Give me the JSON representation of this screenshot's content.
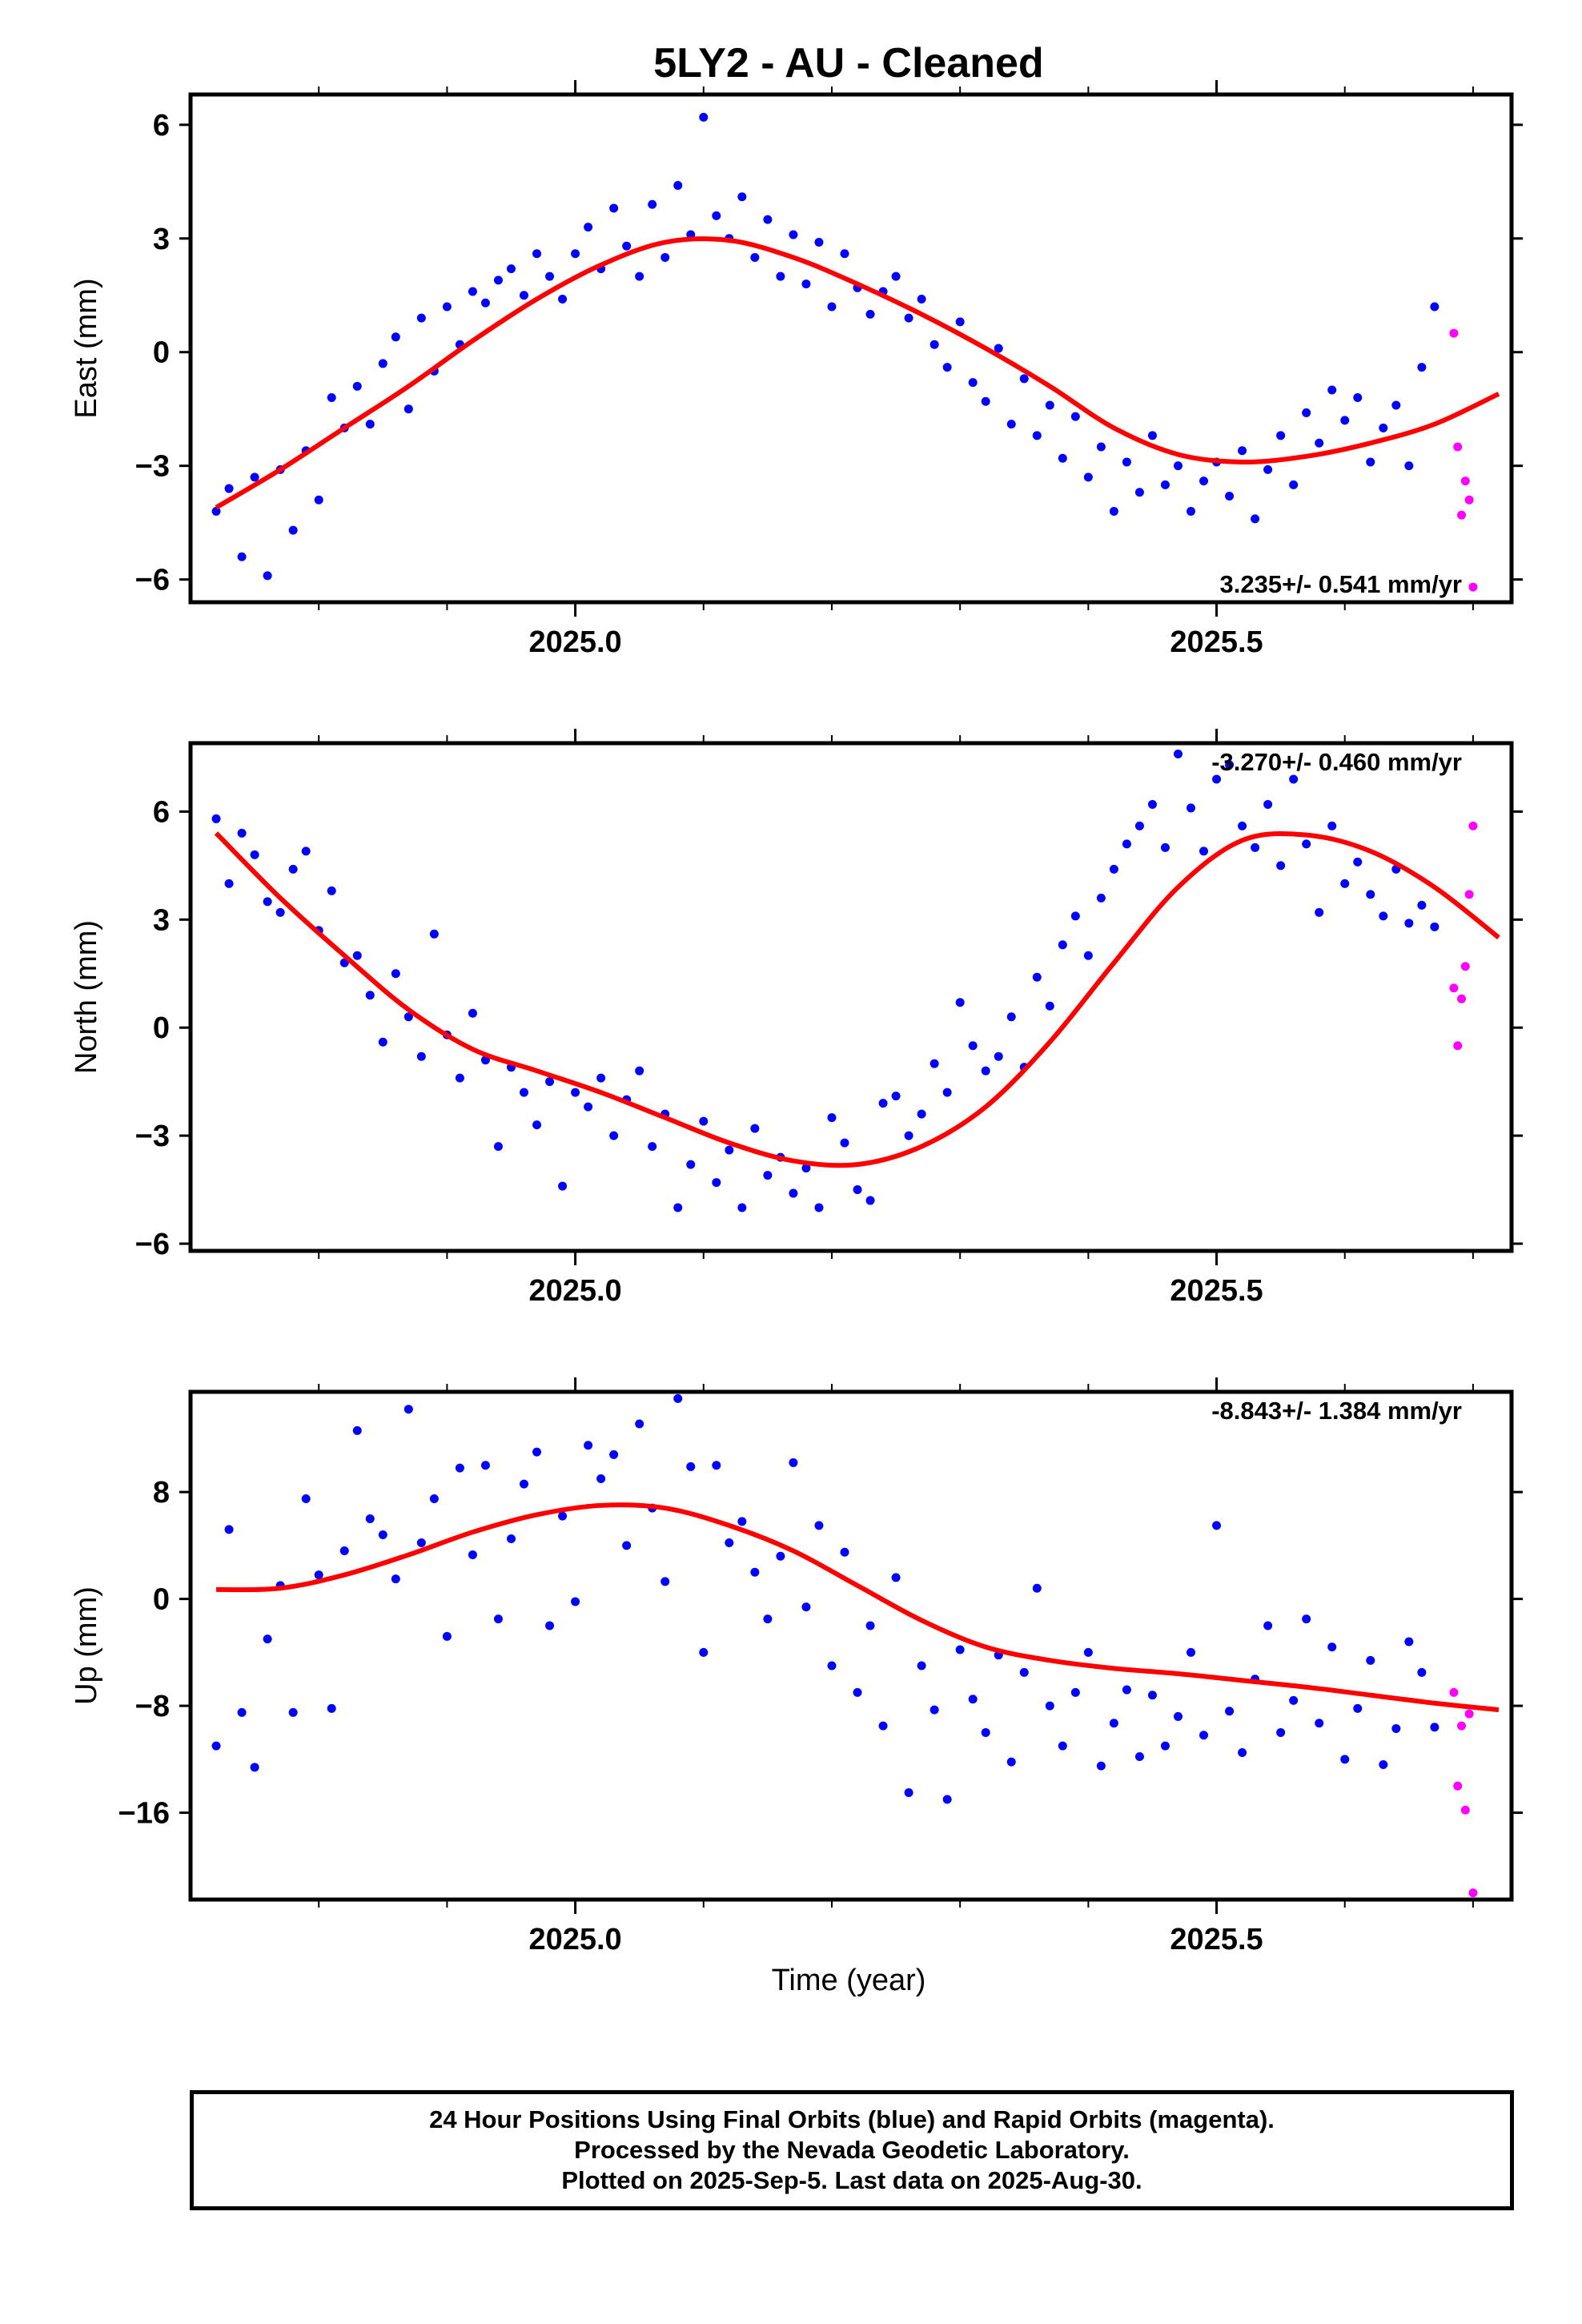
{
  "title": "5LY2  - AU - Cleaned",
  "xlabel": "Time (year)",
  "caption": {
    "line1": "24 Hour Positions Using Final Orbits (blue) and Rapid Orbits (magenta).",
    "line2": "Processed by the Nevada Geodetic Laboratory.",
    "line3": "Plotted on 2025-Sep-5. Last data on 2025-Aug-30."
  },
  "colors": {
    "final": "#0000ff",
    "rapid": "#ff00ff",
    "fit": "#ff0000",
    "frame": "#000000"
  },
  "chart_data": [
    {
      "type": "scatter",
      "name": "east",
      "ylabel": "East (mm)",
      "rate_text": "3.235+/- 0.541 mm/yr",
      "xlim": [
        2024.7,
        2025.73
      ],
      "ylim": [
        -6.6,
        6.8
      ],
      "yticks": [
        6,
        3,
        0,
        -3,
        -6
      ],
      "ytick_labels": [
        "6",
        "3",
        "0",
        "−3",
        "−6"
      ],
      "xticks_major": [
        2025.0,
        2025.5
      ],
      "xtick_labels": [
        "2025.0",
        "2025.5"
      ],
      "final_series": {
        "name": "Final Orbits",
        "x": [
          2024.72,
          2024.73,
          2024.74,
          2024.75,
          2024.76,
          2024.77,
          2024.78,
          2024.79,
          2024.8,
          2024.81,
          2024.82,
          2024.83,
          2024.84,
          2024.85,
          2024.86,
          2024.87,
          2024.88,
          2024.89,
          2024.9,
          2024.91,
          2024.92,
          2024.93,
          2024.94,
          2024.95,
          2024.96,
          2024.97,
          2024.98,
          2024.99,
          2025.0,
          2025.01,
          2025.02,
          2025.03,
          2025.04,
          2025.05,
          2025.06,
          2025.07,
          2025.08,
          2025.09,
          2025.1,
          2025.11,
          2025.12,
          2025.13,
          2025.14,
          2025.15,
          2025.16,
          2025.17,
          2025.18,
          2025.19,
          2025.2,
          2025.21,
          2025.22,
          2025.23,
          2025.24,
          2025.25,
          2025.26,
          2025.27,
          2025.28,
          2025.29,
          2025.3,
          2025.31,
          2025.32,
          2025.33,
          2025.34,
          2025.35,
          2025.36,
          2025.37,
          2025.38,
          2025.39,
          2025.4,
          2025.41,
          2025.42,
          2025.43,
          2025.44,
          2025.45,
          2025.46,
          2025.47,
          2025.48,
          2025.49,
          2025.5,
          2025.51,
          2025.52,
          2025.53,
          2025.54,
          2025.55,
          2025.56,
          2025.57,
          2025.58,
          2025.59,
          2025.6,
          2025.61,
          2025.62,
          2025.63,
          2025.64,
          2025.65,
          2025.66,
          2025.67
        ],
        "y": [
          -4.2,
          -3.6,
          -5.4,
          -3.3,
          -5.9,
          -3.1,
          -4.7,
          -2.6,
          -3.9,
          -1.2,
          -2.0,
          -0.9,
          -1.9,
          -0.3,
          0.4,
          -1.5,
          0.9,
          -0.5,
          1.2,
          0.2,
          1.6,
          1.3,
          1.9,
          2.2,
          1.5,
          2.6,
          2.0,
          1.4,
          2.6,
          3.3,
          2.2,
          3.8,
          2.8,
          2.0,
          3.9,
          2.5,
          4.4,
          3.1,
          6.2,
          3.6,
          3.0,
          4.1,
          2.5,
          3.5,
          2.0,
          3.1,
          1.8,
          2.9,
          1.2,
          2.6,
          1.7,
          1.0,
          1.6,
          2.0,
          0.9,
          1.4,
          0.2,
          -0.4,
          0.8,
          -0.8,
          -1.3,
          0.1,
          -1.9,
          -0.7,
          -2.2,
          -1.4,
          -2.8,
          -1.7,
          -3.3,
          -2.5,
          -4.2,
          -2.9,
          -3.7,
          -2.2,
          -3.5,
          -3.0,
          -4.2,
          -3.4,
          -2.9,
          -3.8,
          -2.6,
          -4.4,
          -3.1,
          -2.2,
          -3.5,
          -1.6,
          -2.4,
          -1.0,
          -1.8,
          -1.2,
          -2.9,
          -2.0,
          -1.4,
          -3.0,
          -0.4,
          1.2
        ]
      },
      "rapid_series": {
        "name": "Rapid Orbits",
        "x": [
          2025.685,
          2025.688,
          2025.691,
          2025.694,
          2025.697,
          2025.7
        ],
        "y": [
          0.5,
          -2.5,
          -4.3,
          -3.4,
          -3.9,
          -6.2
        ]
      },
      "fit": {
        "x": [
          2024.72,
          2024.77,
          2024.82,
          2024.87,
          2024.92,
          2024.97,
          2025.02,
          2025.07,
          2025.12,
          2025.17,
          2025.22,
          2025.27,
          2025.32,
          2025.37,
          2025.42,
          2025.47,
          2025.52,
          2025.57,
          2025.62,
          2025.67,
          2025.72
        ],
        "y": [
          -4.1,
          -3.1,
          -2.0,
          -0.9,
          0.3,
          1.4,
          2.3,
          2.9,
          2.95,
          2.5,
          1.8,
          1.0,
          0.1,
          -0.9,
          -2.0,
          -2.7,
          -2.9,
          -2.75,
          -2.4,
          -1.9,
          -1.1
        ]
      }
    },
    {
      "type": "scatter",
      "name": "north",
      "ylabel": "North (mm)",
      "rate_text": "-3.270+/- 0.460 mm/yr",
      "xlim": [
        2024.7,
        2025.73
      ],
      "ylim": [
        -6.2,
        7.9
      ],
      "yticks": [
        6,
        3,
        0,
        -3,
        -6
      ],
      "ytick_labels": [
        "6",
        "3",
        "0",
        "−3",
        "−6"
      ],
      "xticks_major": [
        2025.0,
        2025.5
      ],
      "xtick_labels": [
        "2025.0",
        "2025.5"
      ],
      "final_series": {
        "name": "Final Orbits",
        "x": [
          2024.72,
          2024.73,
          2024.74,
          2024.75,
          2024.76,
          2024.77,
          2024.78,
          2024.79,
          2024.8,
          2024.81,
          2024.82,
          2024.83,
          2024.84,
          2024.85,
          2024.86,
          2024.87,
          2024.88,
          2024.89,
          2024.9,
          2024.91,
          2024.92,
          2024.93,
          2024.94,
          2024.95,
          2024.96,
          2024.97,
          2024.98,
          2024.99,
          2025.0,
          2025.01,
          2025.02,
          2025.03,
          2025.04,
          2025.05,
          2025.06,
          2025.07,
          2025.08,
          2025.09,
          2025.1,
          2025.11,
          2025.12,
          2025.13,
          2025.14,
          2025.15,
          2025.16,
          2025.17,
          2025.18,
          2025.19,
          2025.2,
          2025.21,
          2025.22,
          2025.23,
          2025.24,
          2025.25,
          2025.26,
          2025.27,
          2025.28,
          2025.29,
          2025.3,
          2025.31,
          2025.32,
          2025.33,
          2025.34,
          2025.35,
          2025.36,
          2025.37,
          2025.38,
          2025.39,
          2025.4,
          2025.41,
          2025.42,
          2025.43,
          2025.44,
          2025.45,
          2025.46,
          2025.47,
          2025.48,
          2025.49,
          2025.5,
          2025.51,
          2025.52,
          2025.53,
          2025.54,
          2025.55,
          2025.56,
          2025.57,
          2025.58,
          2025.59,
          2025.6,
          2025.61,
          2025.62,
          2025.63,
          2025.64,
          2025.65,
          2025.66,
          2025.67
        ],
        "y": [
          5.8,
          4.0,
          5.4,
          4.8,
          3.5,
          3.2,
          4.4,
          4.9,
          2.7,
          3.8,
          1.8,
          2.0,
          0.9,
          -0.4,
          1.5,
          0.3,
          -0.8,
          2.6,
          -0.2,
          -1.4,
          0.4,
          -0.9,
          -3.3,
          -1.1,
          -1.8,
          -2.7,
          -1.5,
          -4.4,
          -1.8,
          -2.2,
          -1.4,
          -3.0,
          -2.0,
          -1.2,
          -3.3,
          -2.4,
          -5.0,
          -3.8,
          -2.6,
          -4.3,
          -3.4,
          -5.0,
          -2.8,
          -4.1,
          -3.6,
          -4.6,
          -3.9,
          -5.0,
          -2.5,
          -3.2,
          -4.5,
          -4.8,
          -2.1,
          -1.9,
          -3.0,
          -2.4,
          -1.0,
          -1.8,
          0.7,
          -0.5,
          -1.2,
          -0.8,
          0.3,
          -1.1,
          1.4,
          0.6,
          2.3,
          3.1,
          2.0,
          3.6,
          4.4,
          5.1,
          5.6,
          6.2,
          5.0,
          7.6,
          6.1,
          4.9,
          6.9,
          7.3,
          5.6,
          5.0,
          6.2,
          4.5,
          6.9,
          5.1,
          3.2,
          5.6,
          4.0,
          4.6,
          3.7,
          3.1,
          4.4,
          2.9,
          3.4,
          2.8
        ]
      },
      "rapid_series": {
        "name": "Rapid Orbits",
        "x": [
          2025.685,
          2025.688,
          2025.691,
          2025.694,
          2025.697,
          2025.7
        ],
        "y": [
          1.1,
          -0.5,
          0.8,
          1.7,
          3.7,
          5.6
        ]
      },
      "fit": {
        "x": [
          2024.72,
          2024.77,
          2024.82,
          2024.87,
          2024.92,
          2024.97,
          2025.02,
          2025.07,
          2025.12,
          2025.17,
          2025.22,
          2025.27,
          2025.32,
          2025.37,
          2025.42,
          2025.47,
          2025.52,
          2025.57,
          2025.62,
          2025.67,
          2025.72
        ],
        "y": [
          5.4,
          3.6,
          2.0,
          0.5,
          -0.6,
          -1.2,
          -1.8,
          -2.5,
          -3.2,
          -3.7,
          -3.8,
          -3.3,
          -2.2,
          -0.4,
          1.8,
          3.9,
          5.2,
          5.35,
          4.9,
          3.9,
          2.5
        ]
      }
    },
    {
      "type": "scatter",
      "name": "up",
      "ylabel": "Up (mm)",
      "rate_text": "-8.843+/- 1.384 mm/yr",
      "xlim": [
        2024.7,
        2025.73
      ],
      "ylim": [
        -22.5,
        15.5
      ],
      "yticks": [
        8,
        0,
        -8,
        -16
      ],
      "ytick_labels": [
        "8",
        "0",
        "−8",
        "−16"
      ],
      "xticks_major": [
        2025.0,
        2025.5
      ],
      "xtick_labels": [
        "2025.0",
        "2025.5"
      ],
      "final_series": {
        "name": "Final Orbits",
        "x": [
          2024.72,
          2024.73,
          2024.74,
          2024.75,
          2024.76,
          2024.77,
          2024.78,
          2024.79,
          2024.8,
          2024.81,
          2024.82,
          2024.83,
          2024.84,
          2024.85,
          2024.86,
          2024.87,
          2024.88,
          2024.89,
          2024.9,
          2024.91,
          2024.92,
          2024.93,
          2024.94,
          2024.95,
          2024.96,
          2024.97,
          2024.98,
          2024.99,
          2025.0,
          2025.01,
          2025.02,
          2025.03,
          2025.04,
          2025.05,
          2025.06,
          2025.07,
          2025.08,
          2025.09,
          2025.1,
          2025.11,
          2025.12,
          2025.13,
          2025.14,
          2025.15,
          2025.16,
          2025.17,
          2025.18,
          2025.19,
          2025.2,
          2025.21,
          2025.22,
          2025.23,
          2025.24,
          2025.25,
          2025.26,
          2025.27,
          2025.28,
          2025.29,
          2025.3,
          2025.31,
          2025.32,
          2025.33,
          2025.34,
          2025.35,
          2025.36,
          2025.37,
          2025.38,
          2025.39,
          2025.4,
          2025.41,
          2025.42,
          2025.43,
          2025.44,
          2025.45,
          2025.46,
          2025.47,
          2025.48,
          2025.49,
          2025.5,
          2025.51,
          2025.52,
          2025.53,
          2025.54,
          2025.55,
          2025.56,
          2025.57,
          2025.58,
          2025.59,
          2025.6,
          2025.61,
          2025.62,
          2025.63,
          2025.64,
          2025.65,
          2025.66,
          2025.67
        ],
        "y": [
          -11.0,
          5.2,
          -8.5,
          -12.6,
          -3.0,
          1.0,
          -8.5,
          7.5,
          1.8,
          -8.2,
          3.6,
          12.6,
          6.0,
          4.8,
          1.5,
          14.2,
          4.2,
          7.5,
          -2.8,
          9.8,
          3.3,
          10.0,
          -1.5,
          4.5,
          8.6,
          11.0,
          -2.0,
          6.2,
          -0.2,
          11.5,
          9.0,
          10.8,
          4.0,
          13.1,
          6.8,
          1.3,
          15.0,
          9.9,
          -4.0,
          10.0,
          4.2,
          5.8,
          2.0,
          -1.5,
          3.2,
          10.2,
          -0.6,
          5.5,
          -5.0,
          3.5,
          -7.0,
          -2.0,
          -9.5,
          1.6,
          -14.5,
          -5.0,
          -8.3,
          -15.0,
          -3.8,
          -7.5,
          -10.0,
          -4.2,
          -12.2,
          -5.5,
          0.8,
          -8.0,
          -11.0,
          -7.0,
          -4.0,
          -12.5,
          -9.3,
          -6.8,
          -11.8,
          -7.2,
          -11.0,
          -8.8,
          -4.0,
          -10.2,
          5.5,
          -8.4,
          -11.5,
          -6.0,
          -2.0,
          -10.0,
          -7.6,
          -1.5,
          -9.3,
          -3.6,
          -12.0,
          -8.2,
          -4.6,
          -12.4,
          -9.7,
          -3.2,
          -5.5,
          -9.6
        ]
      },
      "rapid_series": {
        "name": "Rapid Orbits",
        "x": [
          2025.685,
          2025.688,
          2025.691,
          2025.694,
          2025.697,
          2025.7
        ],
        "y": [
          -7.0,
          -14.0,
          -9.5,
          -15.8,
          -8.6,
          -22.0
        ]
      },
      "fit": {
        "x": [
          2024.72,
          2024.77,
          2024.82,
          2024.87,
          2024.92,
          2024.97,
          2025.02,
          2025.07,
          2025.12,
          2025.17,
          2025.22,
          2025.27,
          2025.32,
          2025.37,
          2025.42,
          2025.47,
          2025.52,
          2025.57,
          2025.62,
          2025.67,
          2025.72
        ],
        "y": [
          0.7,
          0.8,
          1.8,
          3.3,
          5.0,
          6.3,
          7.0,
          6.8,
          5.5,
          3.6,
          1.0,
          -1.6,
          -3.6,
          -4.6,
          -5.2,
          -5.6,
          -6.1,
          -6.6,
          -7.2,
          -7.8,
          -8.3
        ]
      }
    }
  ]
}
